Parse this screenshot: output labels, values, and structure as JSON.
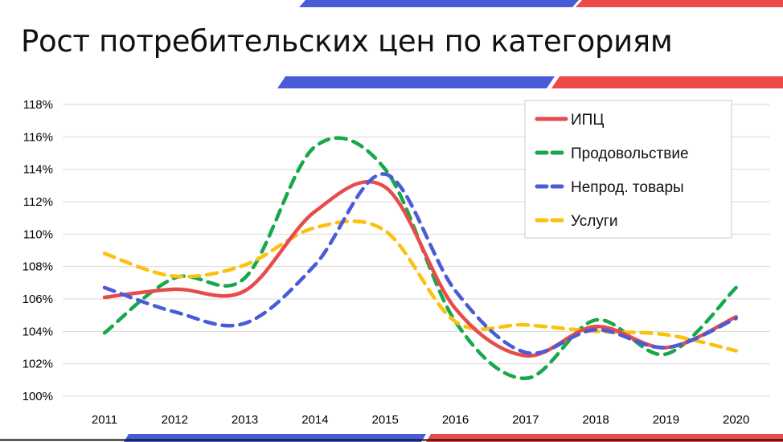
{
  "slide": {
    "title": "Рост потребительских цен по категориям"
  },
  "colors": {
    "accent_blue": "#4a5bd8",
    "accent_red": "#ef4a4a",
    "grid": "#d9d9d9"
  },
  "chart_data": {
    "type": "line",
    "title": "",
    "xlabel": "",
    "ylabel": "",
    "x": [
      "2011",
      "2012",
      "2013",
      "2014",
      "2015",
      "2016",
      "2017",
      "2018",
      "2019",
      "2020"
    ],
    "ylim": [
      100,
      118
    ],
    "y_ticks": [
      100,
      102,
      104,
      106,
      108,
      110,
      112,
      114,
      116,
      118
    ],
    "y_tick_labels": [
      "100%",
      "102%",
      "104%",
      "106%",
      "108%",
      "110%",
      "112%",
      "114%",
      "116%",
      "118%"
    ],
    "grid": true,
    "legend_position": "top-right",
    "smooth": true,
    "series": [
      {
        "name": "ИПЦ",
        "color": "#e84b4b",
        "dash": false,
        "values": [
          106.1,
          106.6,
          106.5,
          111.4,
          112.9,
          105.4,
          102.5,
          104.3,
          103.0,
          104.9
        ]
      },
      {
        "name": "Продовольствие",
        "color": "#17a84c",
        "dash": true,
        "values": [
          103.9,
          107.3,
          107.3,
          115.4,
          114.0,
          104.6,
          101.1,
          104.7,
          102.6,
          106.7
        ]
      },
      {
        "name": "Непрод. товары",
        "color": "#4a5bd8",
        "dash": true,
        "values": [
          106.7,
          105.2,
          104.5,
          108.1,
          113.7,
          106.5,
          102.7,
          104.1,
          103.0,
          104.8
        ]
      },
      {
        "name": "Услуги",
        "color": "#fcc10f",
        "dash": true,
        "values": [
          108.8,
          107.4,
          108.1,
          110.4,
          110.2,
          104.6,
          104.4,
          104.0,
          103.8,
          102.8
        ]
      }
    ]
  }
}
